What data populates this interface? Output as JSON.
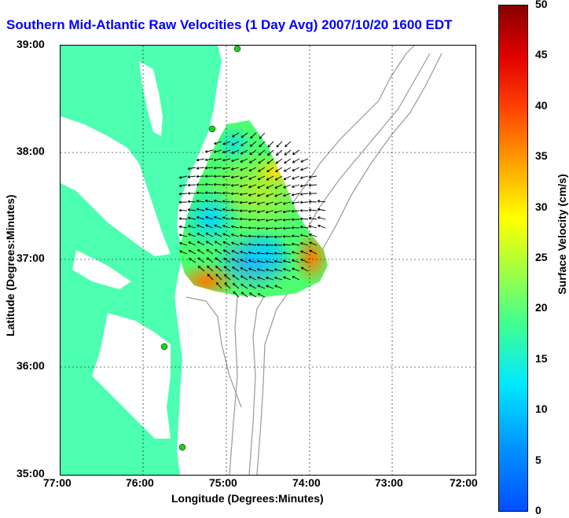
{
  "title": "Southern Mid-Atlantic Raw Velocities (1 Day Avg) 2007/10/20 1600 EDT",
  "axes": {
    "xlabel": "Longitude (Degrees:Minutes)",
    "ylabel": "Latitude (Degrees:Minutes)",
    "x_ticks": [
      "77:00",
      "76:00",
      "75:00",
      "74:00",
      "73:00",
      "72:00"
    ],
    "y_ticks": [
      "39:00",
      "38:00",
      "37:00",
      "36:00",
      "35:00"
    ]
  },
  "colorbar": {
    "label": "Surface Velocity (cm/s)",
    "ticks": [
      "50",
      "45",
      "40",
      "35",
      "30",
      "25",
      "20",
      "15",
      "10",
      "5",
      "0"
    ],
    "min": 0,
    "max": 50,
    "colormap": "jet"
  },
  "map": {
    "land_color": "#4dffb0",
    "bathymetry_color": "#999999",
    "grid": true,
    "stations_color": "#22cc22"
  }
}
